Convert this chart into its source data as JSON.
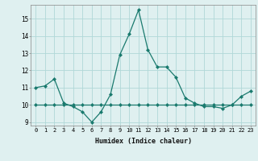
{
  "xlabel": "Humidex (Indice chaleur)",
  "x": [
    0,
    1,
    2,
    3,
    4,
    5,
    6,
    7,
    8,
    9,
    10,
    11,
    12,
    13,
    14,
    15,
    16,
    17,
    18,
    19,
    20,
    21,
    22,
    23
  ],
  "line1": [
    11.0,
    11.1,
    11.5,
    10.1,
    9.9,
    9.6,
    9.0,
    9.6,
    10.6,
    12.9,
    14.1,
    15.5,
    13.2,
    12.2,
    12.2,
    11.6,
    10.4,
    10.1,
    9.9,
    9.9,
    9.8,
    10.0,
    10.5,
    10.8
  ],
  "line2": [
    10.0,
    10.0,
    10.0,
    10.0,
    10.0,
    10.0,
    10.0,
    10.0,
    10.0,
    10.0,
    10.0,
    10.0,
    10.0,
    10.0,
    10.0,
    10.0,
    10.0,
    10.0,
    10.0,
    10.0,
    10.0,
    10.0,
    10.0,
    10.0
  ],
  "line_color": "#1a7a6e",
  "bg_color": "#dff0f0",
  "grid_color": "#b0d8d8",
  "ylim": [
    8.8,
    15.8
  ],
  "yticks": [
    9,
    10,
    11,
    12,
    13,
    14,
    15
  ],
  "xticks": [
    0,
    1,
    2,
    3,
    4,
    5,
    6,
    7,
    8,
    9,
    10,
    11,
    12,
    13,
    14,
    15,
    16,
    17,
    18,
    19,
    20,
    21,
    22,
    23
  ]
}
